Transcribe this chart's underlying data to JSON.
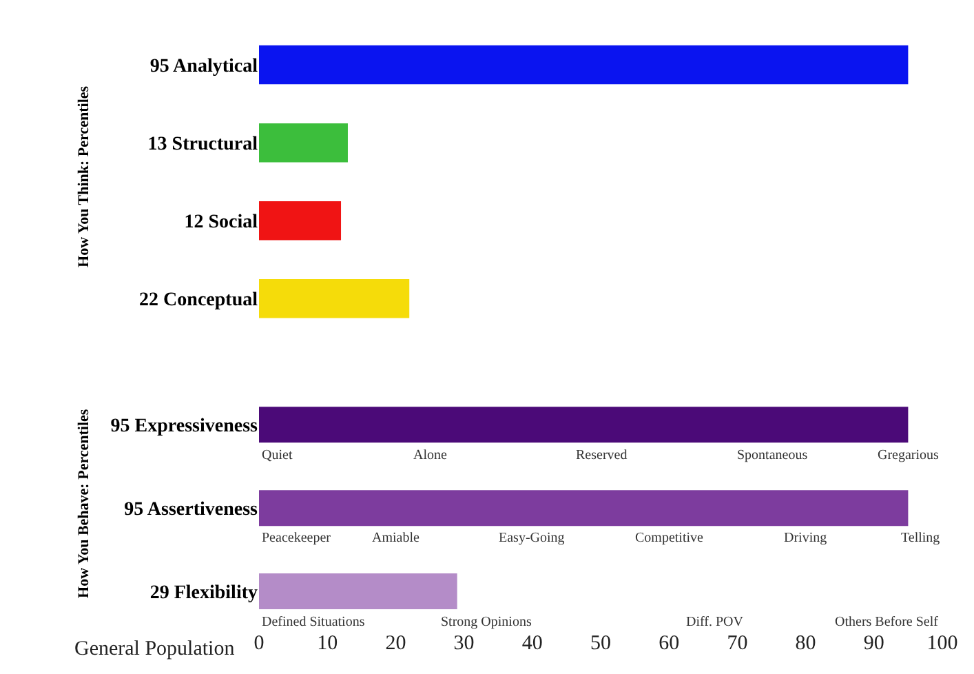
{
  "chart_data": [
    {
      "type": "bar",
      "orientation": "horizontal",
      "ylabel": "How You Think: Percentiles",
      "categories": [
        "95 Analytical",
        "13 Structural",
        "12 Social",
        "22 Conceptual"
      ],
      "values": [
        95,
        13,
        12,
        22
      ],
      "colors": [
        "#0a14f0",
        "#3cbe3c",
        "#f01414",
        "#f5dc0a"
      ],
      "xlim": [
        0,
        100
      ],
      "xticks": [
        0,
        10,
        20,
        30,
        40,
        50,
        60,
        70,
        80,
        90,
        100
      ],
      "tick_labels": "y"
    },
    {
      "type": "bar",
      "orientation": "horizontal",
      "categories": [
        "95 Expressiveness"
      ],
      "values": [
        95
      ],
      "colors": [
        "#4b0a78"
      ],
      "xlim": [
        0,
        100
      ],
      "xticks": [
        0,
        10,
        20,
        30,
        40,
        50,
        60,
        70,
        80,
        90,
        100
      ],
      "tick_labels": "y",
      "annotations": [
        "Quiet",
        "Alone",
        "Reserved",
        "Spontaneous",
        "Gregarious"
      ]
    },
    {
      "type": "bar",
      "orientation": "horizontal",
      "ylabel": "How You Behave: Percentiles",
      "categories": [
        "95 Assertiveness"
      ],
      "values": [
        95
      ],
      "colors": [
        "#7d3c9e"
      ],
      "xlim": [
        0,
        100
      ],
      "xticks": [
        0,
        10,
        20,
        30,
        40,
        50,
        60,
        70,
        80,
        90,
        100
      ],
      "tick_labels": "y",
      "annotations": [
        "Peacekeeper",
        "Amiable",
        "Easy-Going",
        "Competitive",
        "Driving",
        "Telling"
      ]
    },
    {
      "type": "bar",
      "orientation": "horizontal",
      "xlabel": "General Population",
      "categories": [
        "29 Flexibility"
      ],
      "values": [
        29
      ],
      "colors": [
        "#b48cc8"
      ],
      "xlim": [
        0,
        100
      ],
      "xticks": [
        0,
        10,
        20,
        30,
        40,
        50,
        60,
        70,
        80,
        90,
        100
      ],
      "annotations": [
        "Defined Situations",
        "Strong Opinions",
        "Diff. POV",
        "Others Before Self"
      ]
    }
  ]
}
